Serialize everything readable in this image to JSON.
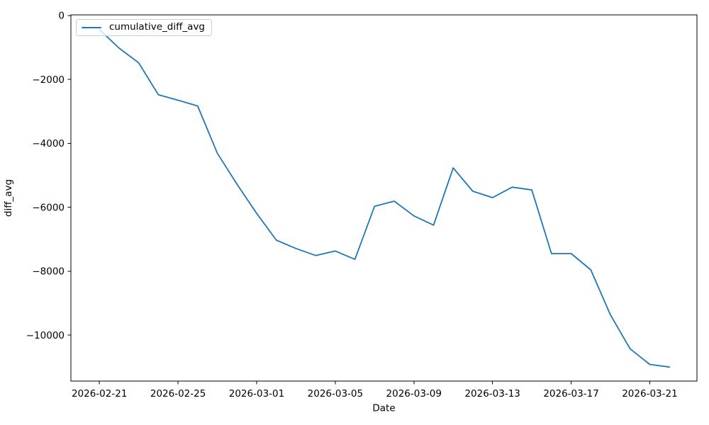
{
  "figure": {
    "background": "#ffffff",
    "spine_color": "#000000"
  },
  "legend": {
    "entry_label": "cumulative_diff_avg",
    "swatch_color": "#1f77b4",
    "background": "rgba(255,255,255,0.8)",
    "border_color": "#cccccc",
    "position": "upper left"
  },
  "chart_data": {
    "type": "line",
    "title": "",
    "xlabel": "Date",
    "ylabel": "diff_avg",
    "grid": false,
    "legend_position": "upper left",
    "x": [
      "2026-02-21",
      "2026-02-22",
      "2026-02-23",
      "2026-02-24",
      "2026-02-25",
      "2026-02-26",
      "2026-02-27",
      "2026-02-28",
      "2026-03-01",
      "2026-03-02",
      "2026-03-03",
      "2026-03-04",
      "2026-03-05",
      "2026-03-06",
      "2026-03-07",
      "2026-03-08",
      "2026-03-09",
      "2026-03-10",
      "2026-03-11",
      "2026-03-12",
      "2026-03-13",
      "2026-03-14",
      "2026-03-15",
      "2026-03-16",
      "2026-03-17",
      "2026-03-18",
      "2026-03-19",
      "2026-03-20",
      "2026-03-21",
      "2026-03-22"
    ],
    "series": [
      {
        "name": "cumulative_diff_avg",
        "color": "#1f77b4",
        "values": [
          -440,
          -1020,
          -1480,
          -2480,
          -2650,
          -2830,
          -4310,
          -5280,
          -6190,
          -7030,
          -7290,
          -7510,
          -7370,
          -7630,
          -5970,
          -5810,
          -6270,
          -6560,
          -4770,
          -5500,
          -5700,
          -5370,
          -5460,
          -7450,
          -7450,
          -7960,
          -9370,
          -10430,
          -10920,
          -11000
        ]
      }
    ],
    "x_tick_labels": [
      "2026-02-21",
      "2026-02-25",
      "2026-03-01",
      "2026-03-05",
      "2026-03-09",
      "2026-03-13",
      "2026-03-17",
      "2026-03-21"
    ],
    "y_tick_values": [
      0,
      -2000,
      -4000,
      -6000,
      -8000,
      -10000
    ],
    "y_tick_labels": [
      "0",
      "−2000",
      "−4000",
      "−6000",
      "−8000",
      "−10000"
    ],
    "ylim": [
      -11440,
      20
    ],
    "xlim_days": [
      -1.45,
      30.4
    ]
  }
}
